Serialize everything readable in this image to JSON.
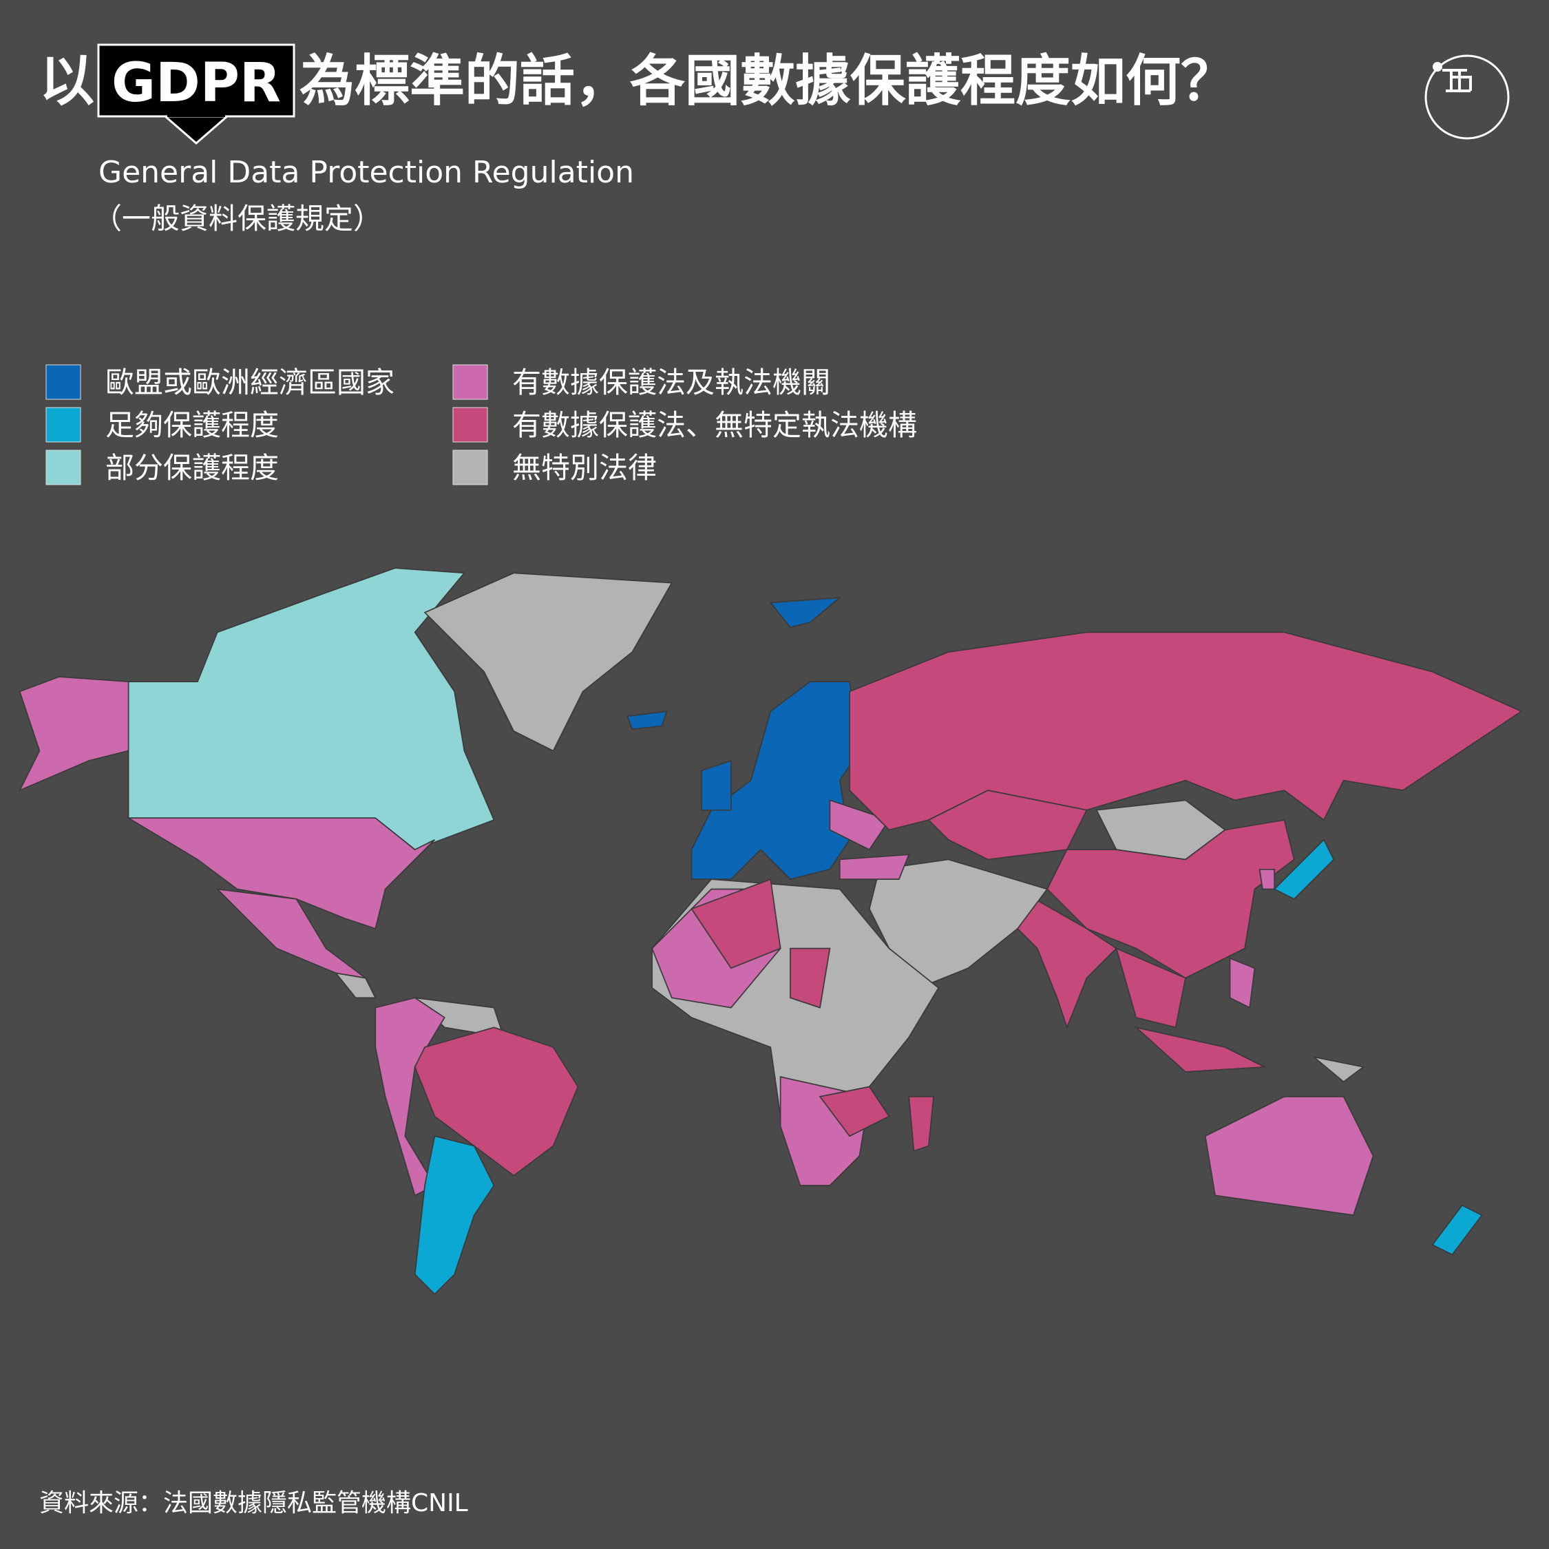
{
  "header": {
    "title_prefix": "以",
    "title_highlight": "GDPR",
    "title_rest": "為標準的話，各國數據保護程度如何？",
    "subtitle_en": "General Data Protection Regulation",
    "subtitle_zh": "（一般資料保護規定）"
  },
  "legend": [
    {
      "label": "歐盟或歐洲經濟區國家",
      "color": "#0b66b5"
    },
    {
      "label": "足夠保護程度",
      "color": "#0aa8d3"
    },
    {
      "label": "部分保護程度",
      "color": "#8fd5d6"
    },
    {
      "label": "有數據保護法及執法機關",
      "color": "#cc6aad"
    },
    {
      "label": "有數據保護法、無特定執法機構",
      "color": "#c5497a"
    },
    {
      "label": "無特別法律",
      "color": "#b3b3b3"
    }
  ],
  "source": "資料來源：法國數據隱私監管機構CNIL"
}
